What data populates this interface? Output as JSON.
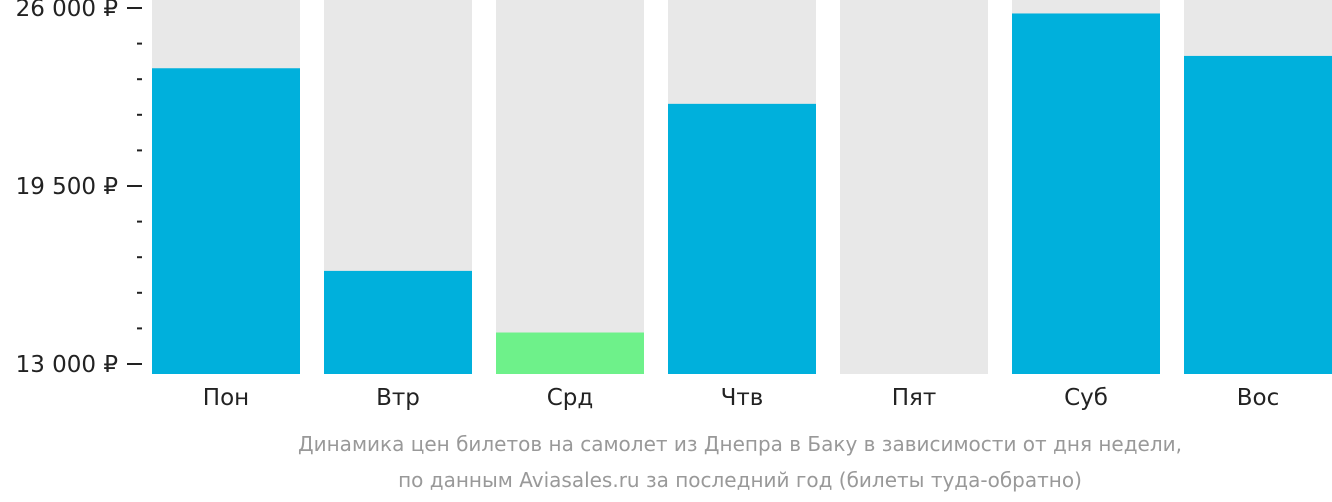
{
  "chart_data": {
    "type": "bar",
    "categories": [
      "Пон",
      "Втр",
      "Срд",
      "Чтв",
      "Пят",
      "Суб",
      "Вос"
    ],
    "values": [
      23800,
      16400,
      14150,
      22500,
      null,
      25800,
      24250
    ],
    "ylim": [
      13000,
      26000
    ],
    "yticks": [
      {
        "value": 13000,
        "label": "13 000 ₽"
      },
      {
        "value": 19500,
        "label": "19 500 ₽"
      },
      {
        "value": 26000,
        "label": "26 000 ₽"
      }
    ],
    "minor_tick_step": 1300,
    "colors": {
      "bar": "#00b0dc",
      "min_bar": "#6ef18a",
      "background_column": "#e8e8e8",
      "axis": "#222222"
    },
    "highlight_min_index": 2
  },
  "caption": {
    "line1": "Динамика цен билетов на самолет из Днепра в Баку в зависимости от дня недели,",
    "line2": "по данным Aviasales.ru за последний год (билеты туда-обратно)"
  }
}
